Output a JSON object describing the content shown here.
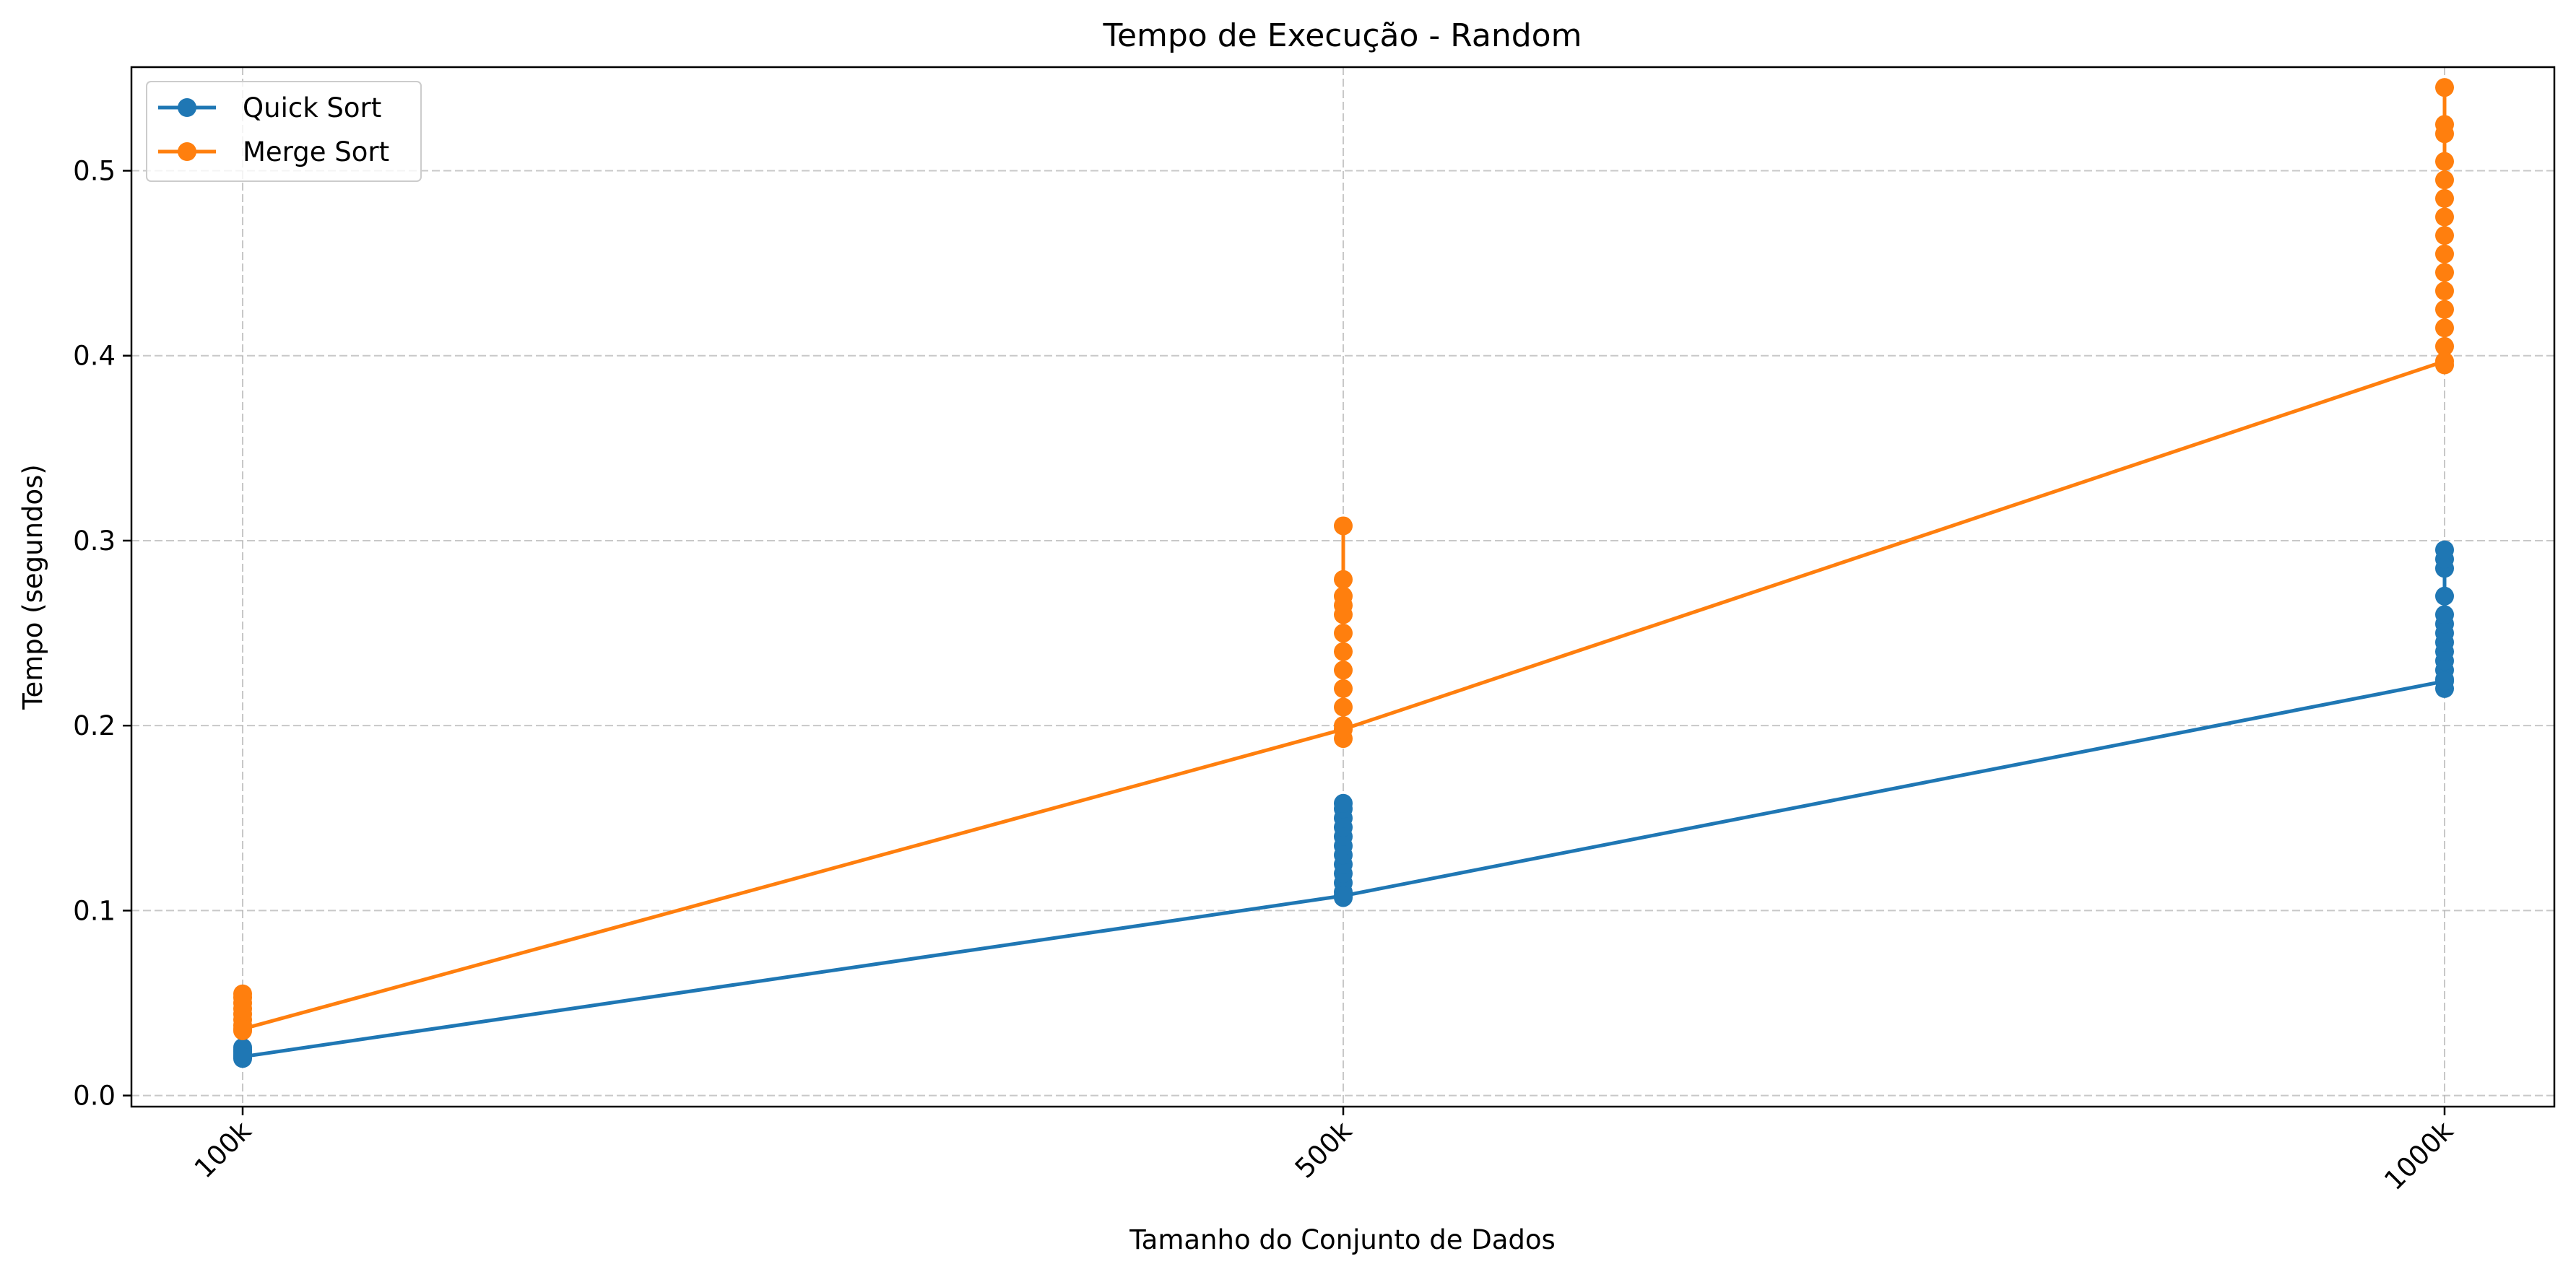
{
  "chart_data": {
    "type": "line",
    "title": "Tempo de Execução - Random",
    "xlabel": "Tamanho do Conjunto de Dados",
    "ylabel": "Tempo (segundos)",
    "categories": [
      "100k",
      "500k",
      "1000k"
    ],
    "ylim": [
      -0.006,
      0.556
    ],
    "yticks": [
      0.0,
      0.1,
      0.2,
      0.3,
      0.4,
      0.5
    ],
    "ytick_labels": [
      "0.0",
      "0.1",
      "0.2",
      "0.3",
      "0.4",
      "0.5"
    ],
    "grid": true,
    "legend_position": "top-left",
    "series": [
      {
        "name": "Quick Sort",
        "color": "#1f77b4",
        "values": [
          0.021,
          0.108,
          0.224
        ],
        "spread": [
          [
            0.02,
            0.021,
            0.022,
            0.023,
            0.024,
            0.025,
            0.026
          ],
          [
            0.107,
            0.11,
            0.115,
            0.12,
            0.125,
            0.13,
            0.135,
            0.14,
            0.145,
            0.15,
            0.155,
            0.158
          ],
          [
            0.22,
            0.225,
            0.23,
            0.235,
            0.24,
            0.245,
            0.25,
            0.255,
            0.26,
            0.27,
            0.285,
            0.29,
            0.295
          ]
        ]
      },
      {
        "name": "Merge Sort",
        "color": "#ff7f0e",
        "values": [
          0.036,
          0.198,
          0.397
        ],
        "spread": [
          [
            0.035,
            0.038,
            0.041,
            0.044,
            0.047,
            0.05,
            0.053,
            0.055
          ],
          [
            0.193,
            0.2,
            0.21,
            0.22,
            0.23,
            0.24,
            0.25,
            0.26,
            0.265,
            0.27,
            0.279,
            0.308
          ],
          [
            0.395,
            0.405,
            0.415,
            0.425,
            0.435,
            0.445,
            0.455,
            0.465,
            0.475,
            0.485,
            0.495,
            0.505,
            0.52,
            0.525,
            0.545
          ]
        ]
      }
    ]
  }
}
